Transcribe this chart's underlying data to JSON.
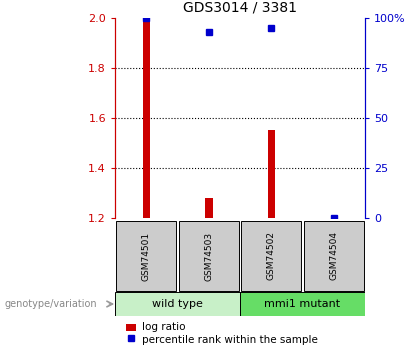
{
  "title": "GDS3014 / 3381",
  "samples": [
    "GSM74501",
    "GSM74503",
    "GSM74502",
    "GSM74504"
  ],
  "log_ratio": [
    2.0,
    1.28,
    1.55,
    1.2
  ],
  "log_ratio_baseline": 1.2,
  "percentile_rank": [
    100,
    93,
    95,
    0
  ],
  "ylim_left": [
    1.2,
    2.0
  ],
  "ylim_right": [
    0,
    100
  ],
  "left_ticks": [
    1.2,
    1.4,
    1.6,
    1.8,
    2.0
  ],
  "right_ticks": [
    0,
    25,
    50,
    75,
    100
  ],
  "right_tick_labels": [
    "0",
    "25",
    "50",
    "75",
    "100%"
  ],
  "groups": [
    {
      "label": "wild type",
      "samples": [
        0,
        1
      ],
      "color": "#c8f0c8"
    },
    {
      "label": "mmi1 mutant",
      "samples": [
        2,
        3
      ],
      "color": "#66dd66"
    }
  ],
  "bar_color": "#cc0000",
  "dot_color": "#0000cc",
  "bar_width": 0.12,
  "group_label": "genotype/variation",
  "legend_bar": "log ratio",
  "legend_dot": "percentile rank within the sample",
  "left_axis_color": "#cc0000",
  "right_axis_color": "#0000cc",
  "sample_box_color": "#cccccc",
  "dot_size": 4
}
